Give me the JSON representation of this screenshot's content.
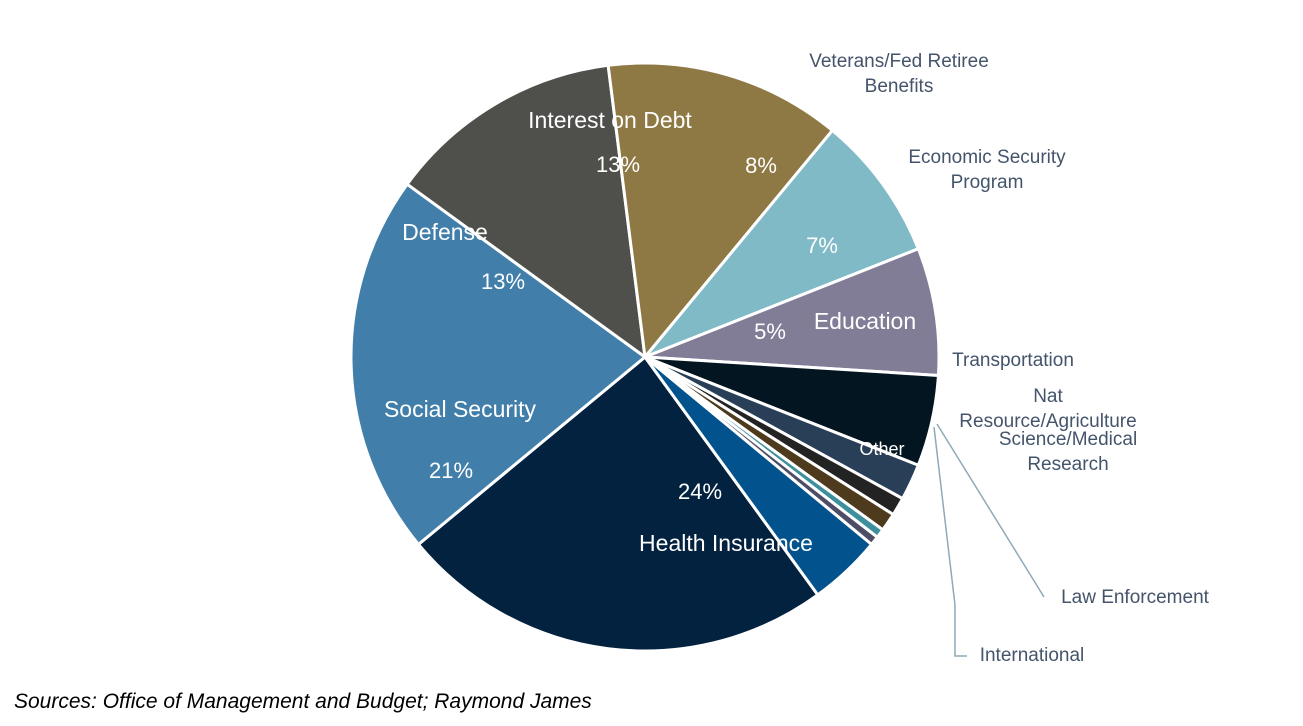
{
  "chart_data": {
    "type": "pie",
    "categories": [
      "Health Insurance",
      "Social Security",
      "Defense",
      "Interest on Debt",
      "Veterans/Fed Retiree Benefits",
      "Economic Security Program",
      "Education",
      "Transportation",
      "Nat Resource/Agriculture",
      "Science/Medical Research",
      "Law Enforcement",
      "International",
      "Other"
    ],
    "values": [
      24,
      21,
      13,
      13,
      8,
      7,
      5,
      2,
      1,
      1,
      0.5,
      0.5,
      4
    ],
    "value_labels": [
      "24%",
      "21%",
      "13%",
      "13%",
      "8%",
      "7%",
      "5%",
      "",
      "",
      "",
      "",
      "",
      ""
    ],
    "colors": [
      "#03223f",
      "#417faa",
      "#4f4f4b",
      "#8e7843",
      "#7fbac6",
      "#827d97",
      "#031521",
      "#283f57",
      "#232323",
      "#4e3b1e",
      "#3d8f9c",
      "#4e4d66",
      "#02538d"
    ],
    "legend": "none"
  },
  "source_note": "Sources:  Office of Management and Budget; Raymond James"
}
